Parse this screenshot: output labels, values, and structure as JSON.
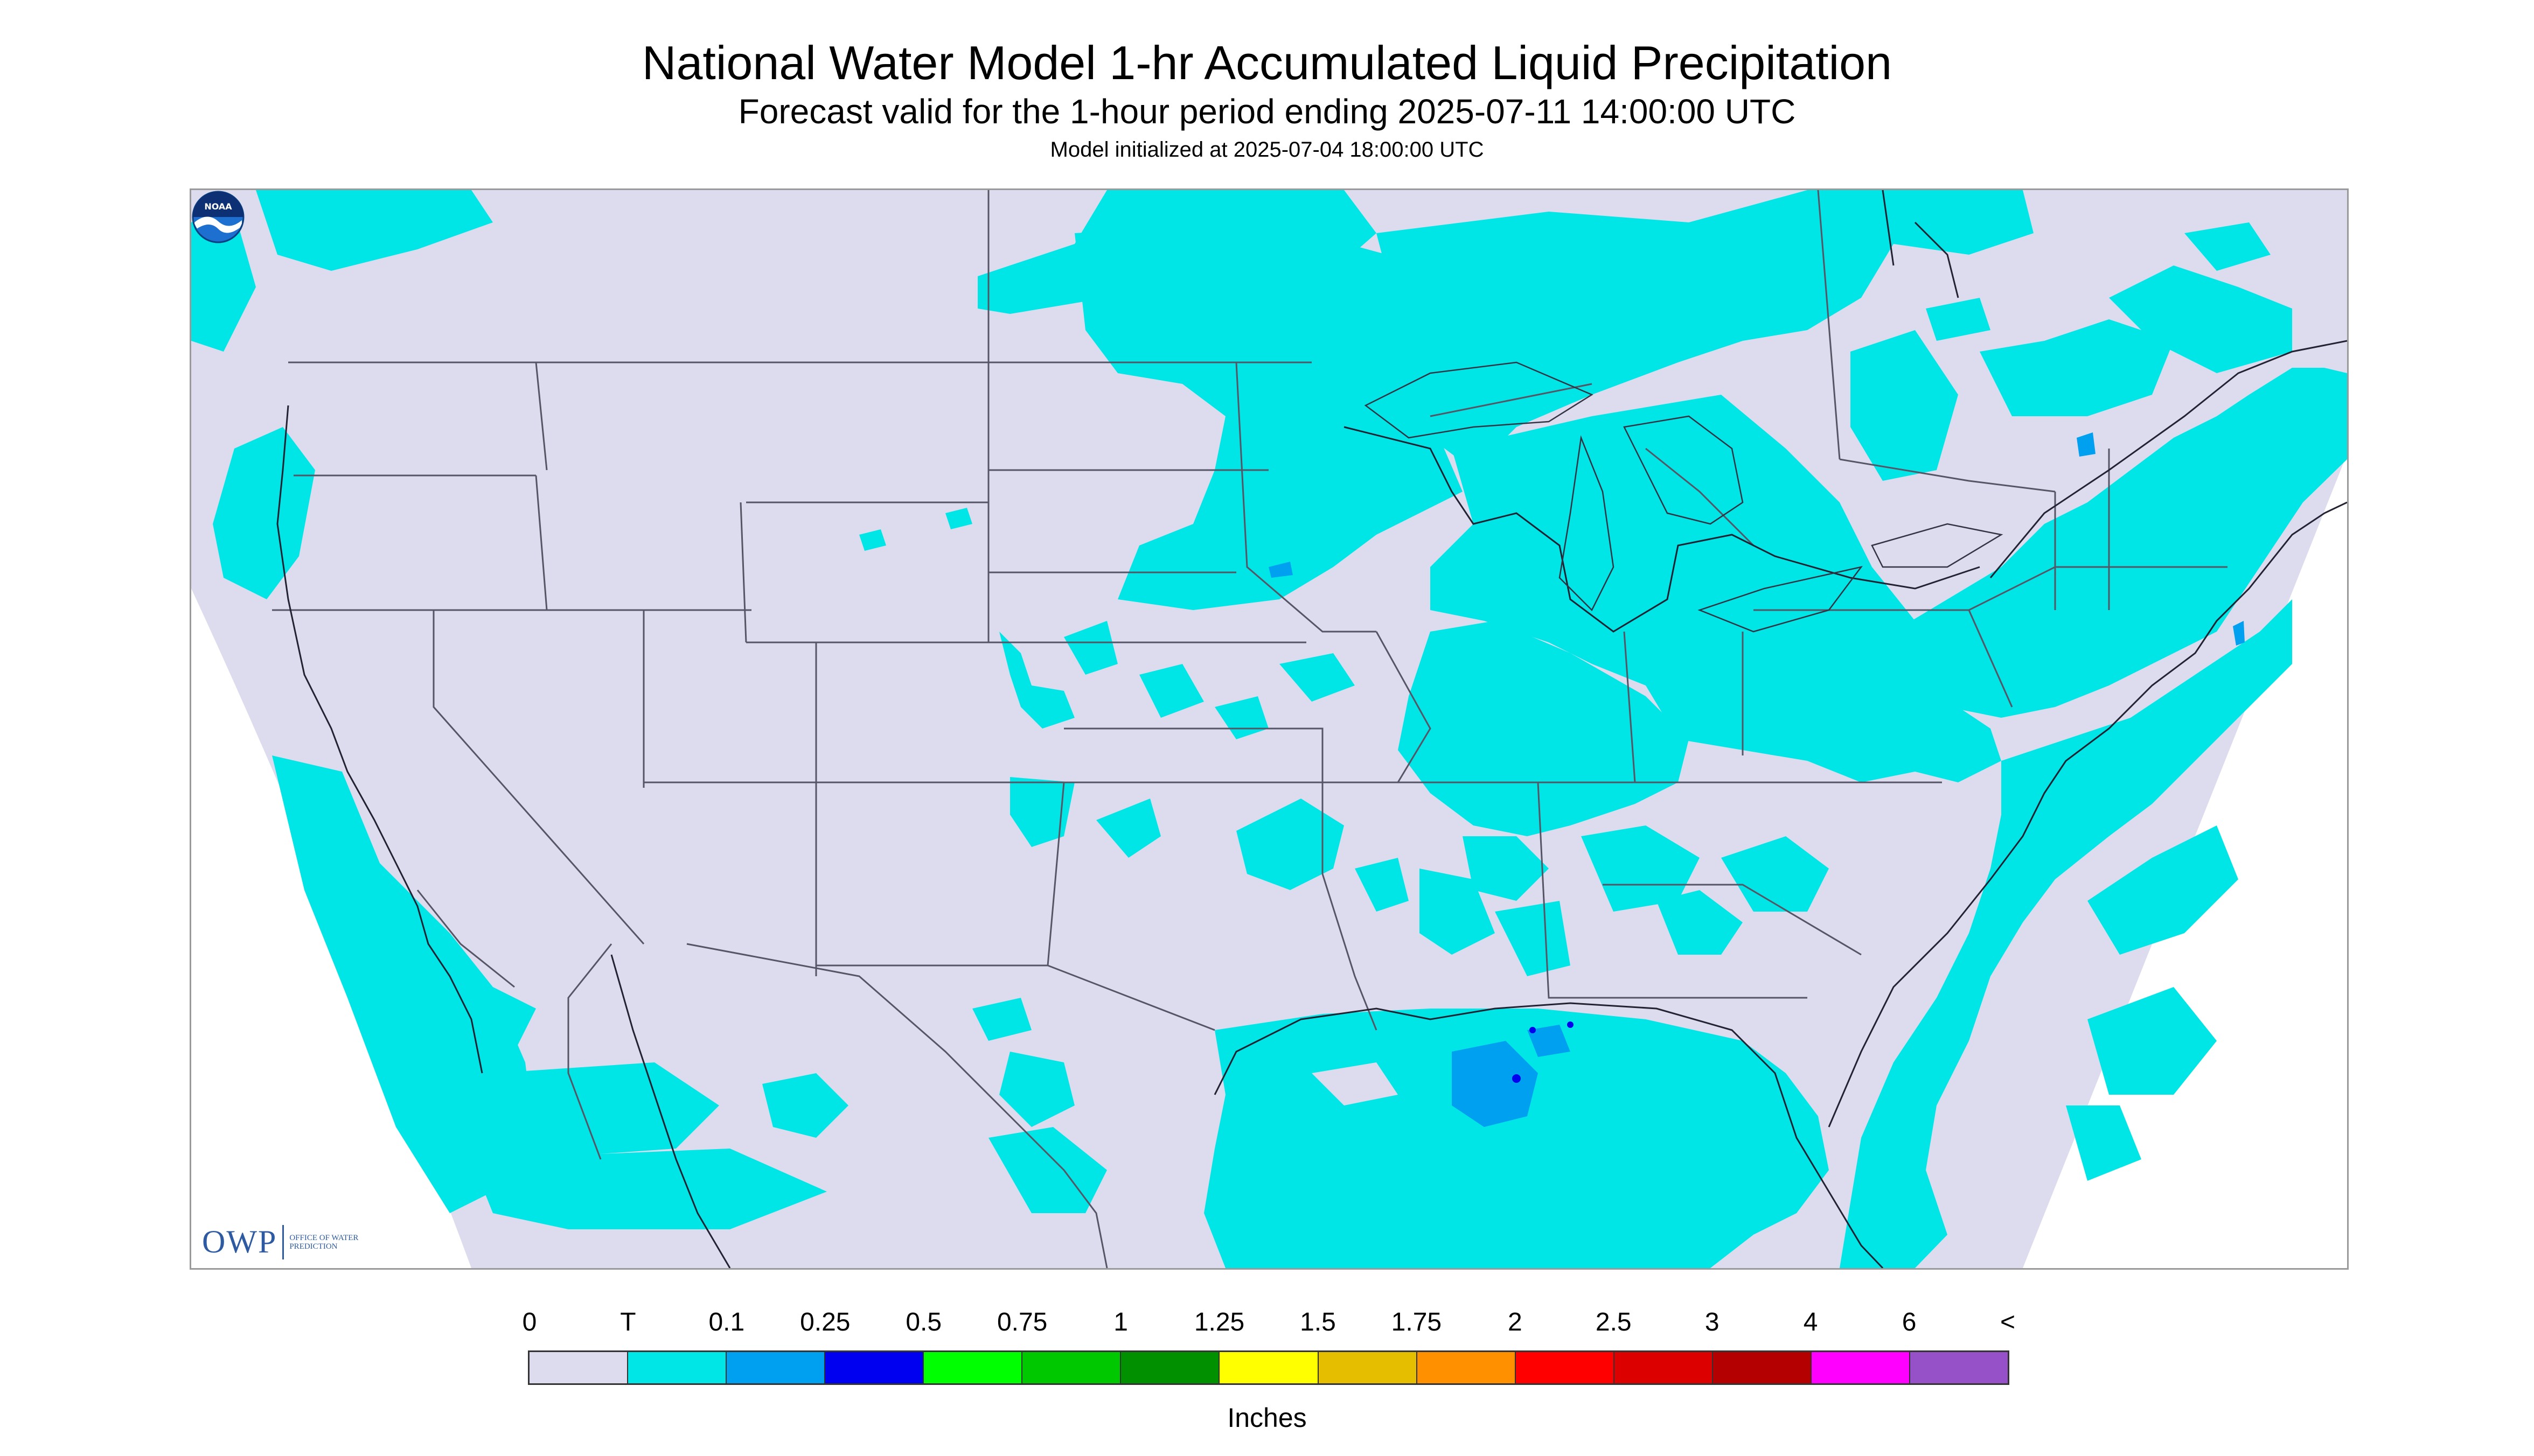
{
  "header": {
    "title": "National Water Model 1-hr Accumulated Liquid Precipitation",
    "subtitle": "Forecast valid for the 1-hour period ending 2025-07-11 14:00:00 UTC",
    "init_line": "Model initialized at 2025-07-04 18:00:00 UTC"
  },
  "logos": {
    "owp_text": "OWP",
    "owp_subtitle": "OFFICE OF WATER PREDICTION",
    "noaa_text": "NOAA"
  },
  "legend": {
    "units": "Inches",
    "ticks": [
      "0",
      "T",
      "0.1",
      "0.25",
      "0.5",
      "0.75",
      "1",
      "1.25",
      "1.5",
      "1.75",
      "2",
      "2.5",
      "3",
      "4",
      "6",
      "<"
    ],
    "colors": [
      "#dcdcee",
      "#00e6e6",
      "#00a0f0",
      "#0000f0",
      "#00ff00",
      "#00c800",
      "#009000",
      "#ffff00",
      "#e6be00",
      "#ff9000",
      "#ff0000",
      "#dc0000",
      "#b40000",
      "#ff00ff",
      "#9650c8"
    ]
  },
  "map": {
    "background": "#dcdcee",
    "precip_color": "#00e6e6",
    "heavier_color": "#00a0f0",
    "heaviest_color": "#0000f0",
    "outside_domain_color": "#ffffff",
    "border_color": "#555566"
  }
}
